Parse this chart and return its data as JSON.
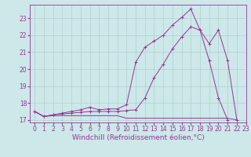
{
  "xlabel": "Windchill (Refroidissement éolien,°C)",
  "bg_color": "#cce8e8",
  "grid_color": "#b0d0d0",
  "line_color": "#993399",
  "x_data": [
    0,
    1,
    2,
    3,
    4,
    5,
    6,
    7,
    8,
    9,
    10,
    11,
    12,
    13,
    14,
    15,
    16,
    17,
    18,
    19,
    20,
    21,
    22,
    23
  ],
  "line1": [
    17.5,
    17.2,
    17.3,
    17.4,
    17.5,
    17.6,
    17.75,
    17.6,
    17.65,
    17.65,
    17.9,
    20.4,
    21.3,
    21.65,
    22.0,
    22.6,
    23.05,
    23.55,
    22.3,
    20.5,
    18.3,
    17.0,
    null,
    null
  ],
  "line2": [
    17.5,
    17.2,
    17.3,
    17.35,
    17.4,
    17.45,
    17.5,
    17.5,
    17.5,
    17.5,
    17.55,
    17.6,
    18.3,
    19.5,
    20.3,
    21.2,
    21.9,
    22.5,
    22.3,
    21.5,
    22.3,
    20.5,
    17.0,
    null
  ],
  "line3": [
    17.5,
    17.2,
    17.25,
    17.25,
    17.25,
    17.25,
    17.25,
    17.25,
    17.25,
    17.25,
    17.1,
    17.1,
    17.1,
    17.1,
    17.1,
    17.1,
    17.1,
    17.1,
    17.1,
    17.1,
    17.1,
    17.1,
    17.0,
    null
  ],
  "xlim": [
    -0.5,
    23
  ],
  "ylim": [
    16.85,
    23.8
  ],
  "yticks": [
    17,
    18,
    19,
    20,
    21,
    22,
    23
  ],
  "xticks": [
    0,
    1,
    2,
    3,
    4,
    5,
    6,
    7,
    8,
    9,
    10,
    11,
    12,
    13,
    14,
    15,
    16,
    17,
    18,
    19,
    20,
    21,
    22,
    23
  ],
  "tick_fontsize": 5.5,
  "xlabel_fontsize": 6.5,
  "figsize": [
    3.2,
    2.0
  ],
  "dpi": 100
}
